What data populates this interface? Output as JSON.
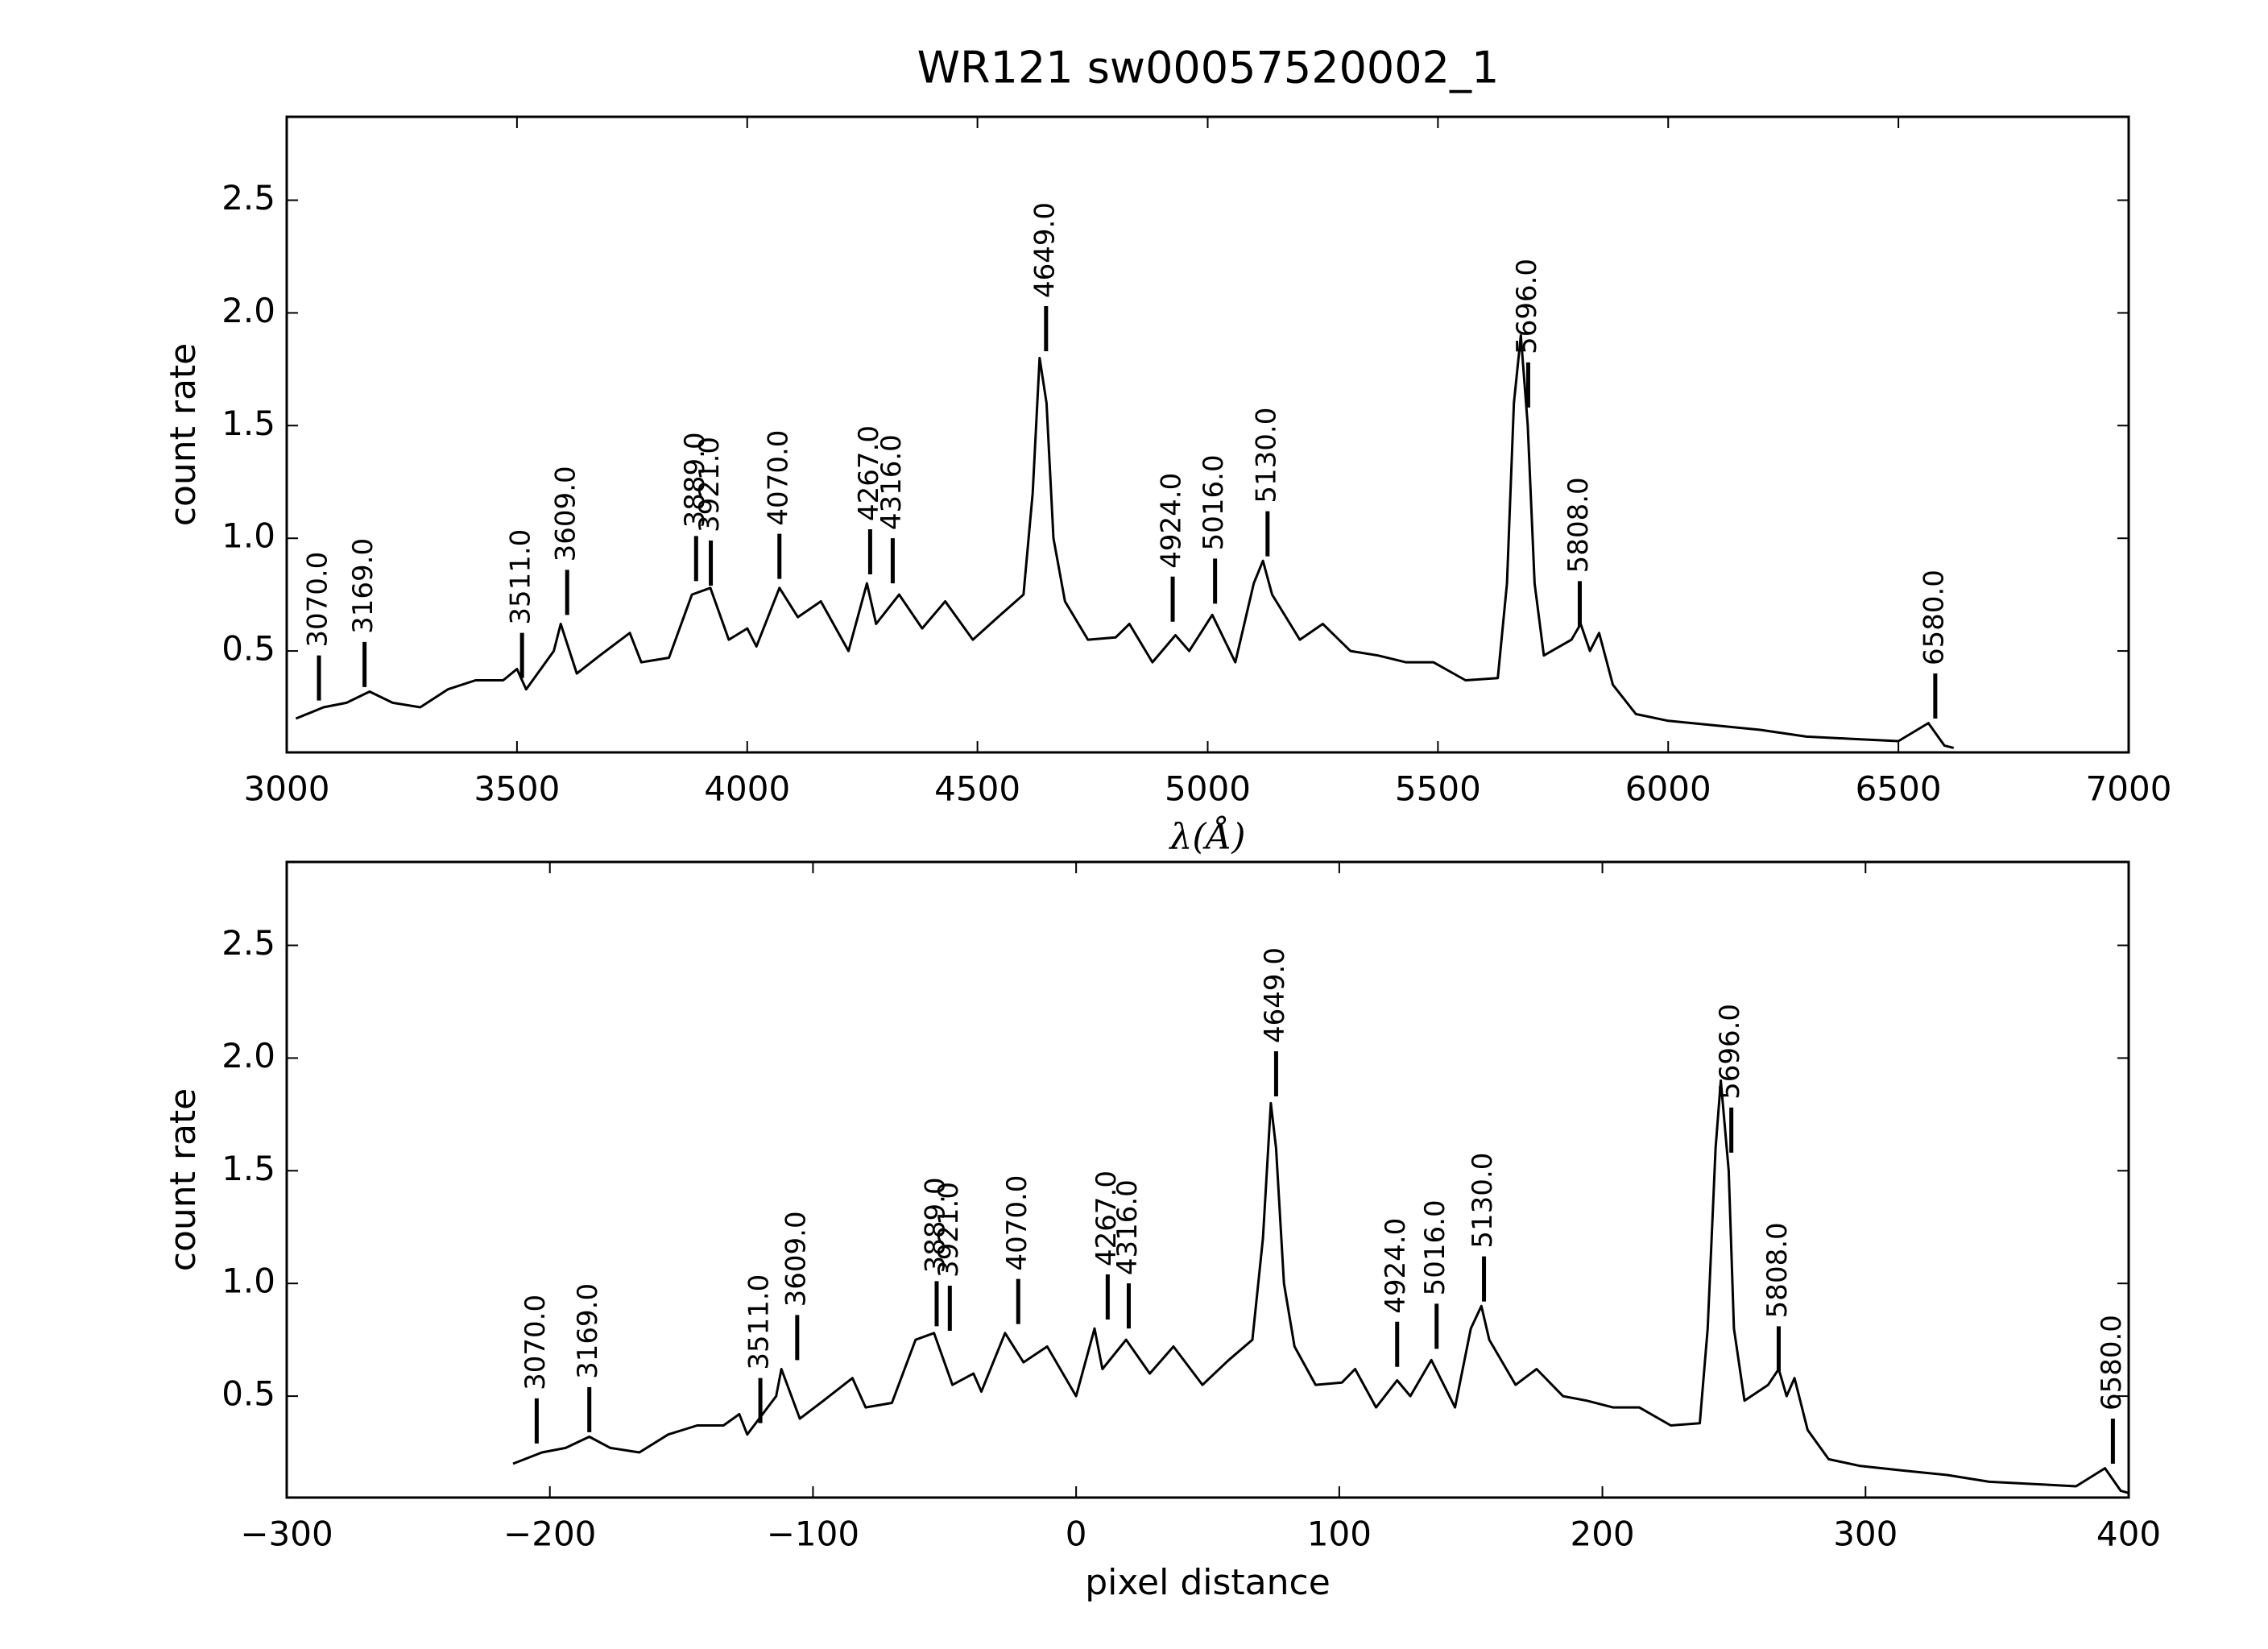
{
  "chart_data": [
    {
      "type": "line",
      "title": "WR121  sw00057520002_1",
      "xlabel": "λ(Å)",
      "ylabel": "count rate",
      "xlim": [
        3000,
        7000
      ],
      "xticks": [
        3000,
        3500,
        4000,
        4500,
        5000,
        5500,
        6000,
        6500,
        7000
      ],
      "ylim": [
        0.05,
        2.87
      ],
      "yticks": [
        0.5,
        1.0,
        1.5,
        2.0,
        2.5
      ],
      "color": "#000000",
      "x": [
        3020,
        3080,
        3130,
        3180,
        3230,
        3290,
        3350,
        3410,
        3470,
        3500,
        3520,
        3580,
        3595,
        3630,
        3680,
        3745,
        3770,
        3830,
        3880,
        3920,
        3960,
        4000,
        4020,
        4070,
        4110,
        4160,
        4220,
        4260,
        4280,
        4330,
        4380,
        4430,
        4490,
        4550,
        4600,
        4620,
        4635,
        4650,
        4665,
        4690,
        4740,
        4800,
        4830,
        4880,
        4930,
        4960,
        5010,
        5060,
        5100,
        5120,
        5140,
        5200,
        5250,
        5310,
        5370,
        5430,
        5490,
        5560,
        5630,
        5650,
        5665,
        5680,
        5695,
        5710,
        5730,
        5790,
        5810,
        5830,
        5850,
        5880,
        5930,
        6000,
        6100,
        6200,
        6300,
        6400,
        6500,
        6565,
        6600,
        6620
      ],
      "values": [
        0.2,
        0.25,
        0.27,
        0.32,
        0.27,
        0.25,
        0.33,
        0.37,
        0.37,
        0.42,
        0.33,
        0.5,
        0.62,
        0.4,
        0.48,
        0.58,
        0.45,
        0.47,
        0.75,
        0.78,
        0.55,
        0.6,
        0.52,
        0.78,
        0.65,
        0.72,
        0.5,
        0.8,
        0.62,
        0.75,
        0.6,
        0.72,
        0.55,
        0.66,
        0.75,
        1.2,
        1.8,
        1.6,
        1.0,
        0.72,
        0.55,
        0.56,
        0.62,
        0.45,
        0.57,
        0.5,
        0.66,
        0.45,
        0.8,
        0.9,
        0.75,
        0.55,
        0.62,
        0.5,
        0.48,
        0.45,
        0.45,
        0.37,
        0.38,
        0.8,
        1.6,
        1.9,
        1.5,
        0.8,
        0.48,
        0.55,
        0.62,
        0.5,
        0.58,
        0.35,
        0.22,
        0.19,
        0.17,
        0.15,
        0.12,
        0.11,
        0.1,
        0.18,
        0.08,
        0.07
      ],
      "annotations": [
        {
          "label": "3070.0",
          "x": 3070,
          "y": 0.28
        },
        {
          "label": "3169.0",
          "x": 3169,
          "y": 0.34
        },
        {
          "label": "3511.0",
          "x": 3511,
          "y": 0.38
        },
        {
          "label": "3609.0",
          "x": 3609,
          "y": 0.66
        },
        {
          "label": "3889.0",
          "x": 3889,
          "y": 0.81
        },
        {
          "label": "3921.0",
          "x": 3921,
          "y": 0.79
        },
        {
          "label": "4070.0",
          "x": 4070,
          "y": 0.82
        },
        {
          "label": "4267.0",
          "x": 4267,
          "y": 0.84
        },
        {
          "label": "4316.0",
          "x": 4316,
          "y": 0.8
        },
        {
          "label": "4649.0",
          "x": 4649,
          "y": 1.83
        },
        {
          "label": "4924.0",
          "x": 4924,
          "y": 0.63
        },
        {
          "label": "5016.0",
          "x": 5016,
          "y": 0.71
        },
        {
          "label": "5130.0",
          "x": 5130,
          "y": 0.92
        },
        {
          "label": "5696.0",
          "x": 5696,
          "y": 1.58
        },
        {
          "label": "5808.0",
          "x": 5808,
          "y": 0.61
        },
        {
          "label": "6580.0",
          "x": 6580,
          "y": 0.2
        }
      ]
    },
    {
      "type": "line",
      "xlabel": "pixel distance",
      "ylabel": "count rate",
      "xlim": [
        -300,
        400
      ],
      "xticks": [
        {
          "value": -300,
          "label": "−300"
        },
        {
          "value": -200,
          "label": "−200"
        },
        {
          "value": -100,
          "label": "−100"
        },
        0,
        100,
        200,
        300,
        400
      ],
      "ylim": [
        0.05,
        2.87
      ],
      "yticks": [
        0.5,
        1.0,
        1.5,
        2.0,
        2.5
      ],
      "color": "#000000",
      "x": [
        -214,
        -203,
        -194,
        -185,
        -177,
        -166,
        -155,
        -144,
        -134,
        -128,
        -125,
        -114,
        -112,
        -105,
        -96,
        -85,
        -80,
        -70,
        -61,
        -54,
        -47,
        -39,
        -36,
        -27,
        -20,
        -11,
        0,
        7,
        10,
        19,
        28,
        37,
        48,
        58,
        67,
        71,
        74,
        76,
        79,
        83,
        91,
        101,
        106,
        114,
        122,
        127,
        135,
        144,
        150,
        154,
        157,
        167,
        175,
        185,
        194,
        204,
        214,
        226,
        237,
        240,
        243,
        245,
        248,
        250,
        254,
        263,
        267,
        270,
        273,
        278,
        286,
        298,
        314,
        331,
        347,
        364,
        380,
        391,
        397,
        400
      ],
      "values": [
        0.2,
        0.25,
        0.27,
        0.32,
        0.27,
        0.25,
        0.33,
        0.37,
        0.37,
        0.42,
        0.33,
        0.5,
        0.62,
        0.4,
        0.48,
        0.58,
        0.45,
        0.47,
        0.75,
        0.78,
        0.55,
        0.6,
        0.52,
        0.78,
        0.65,
        0.72,
        0.5,
        0.8,
        0.62,
        0.75,
        0.6,
        0.72,
        0.55,
        0.66,
        0.75,
        1.2,
        1.8,
        1.6,
        1.0,
        0.72,
        0.55,
        0.56,
        0.62,
        0.45,
        0.57,
        0.5,
        0.66,
        0.45,
        0.8,
        0.9,
        0.75,
        0.55,
        0.62,
        0.5,
        0.48,
        0.45,
        0.45,
        0.37,
        0.38,
        0.8,
        1.6,
        1.9,
        1.5,
        0.8,
        0.48,
        0.55,
        0.62,
        0.5,
        0.58,
        0.35,
        0.22,
        0.19,
        0.17,
        0.15,
        0.12,
        0.11,
        0.1,
        0.18,
        0.08,
        0.07
      ],
      "annotations": [
        {
          "label": "3070.0",
          "x": -205,
          "y": 0.29
        },
        {
          "label": "3169.0",
          "x": -185,
          "y": 0.34
        },
        {
          "label": "3511.0",
          "x": -120,
          "y": 0.38
        },
        {
          "label": "3609.0",
          "x": -106,
          "y": 0.66
        },
        {
          "label": "3889.0",
          "x": -53,
          "y": 0.81
        },
        {
          "label": "3921.0",
          "x": -48,
          "y": 0.79
        },
        {
          "label": "4070.0",
          "x": -22,
          "y": 0.82
        },
        {
          "label": "4267.0",
          "x": 12,
          "y": 0.84
        },
        {
          "label": "4316.0",
          "x": 20,
          "y": 0.8
        },
        {
          "label": "4649.0",
          "x": 76,
          "y": 1.83
        },
        {
          "label": "4924.0",
          "x": 122,
          "y": 0.63
        },
        {
          "label": "5016.0",
          "x": 137,
          "y": 0.71
        },
        {
          "label": "5130.0",
          "x": 155,
          "y": 0.92
        },
        {
          "label": "5696.0",
          "x": 249,
          "y": 1.58
        },
        {
          "label": "5808.0",
          "x": 267,
          "y": 0.61
        },
        {
          "label": "6580.0",
          "x": 394,
          "y": 0.2
        }
      ]
    }
  ]
}
